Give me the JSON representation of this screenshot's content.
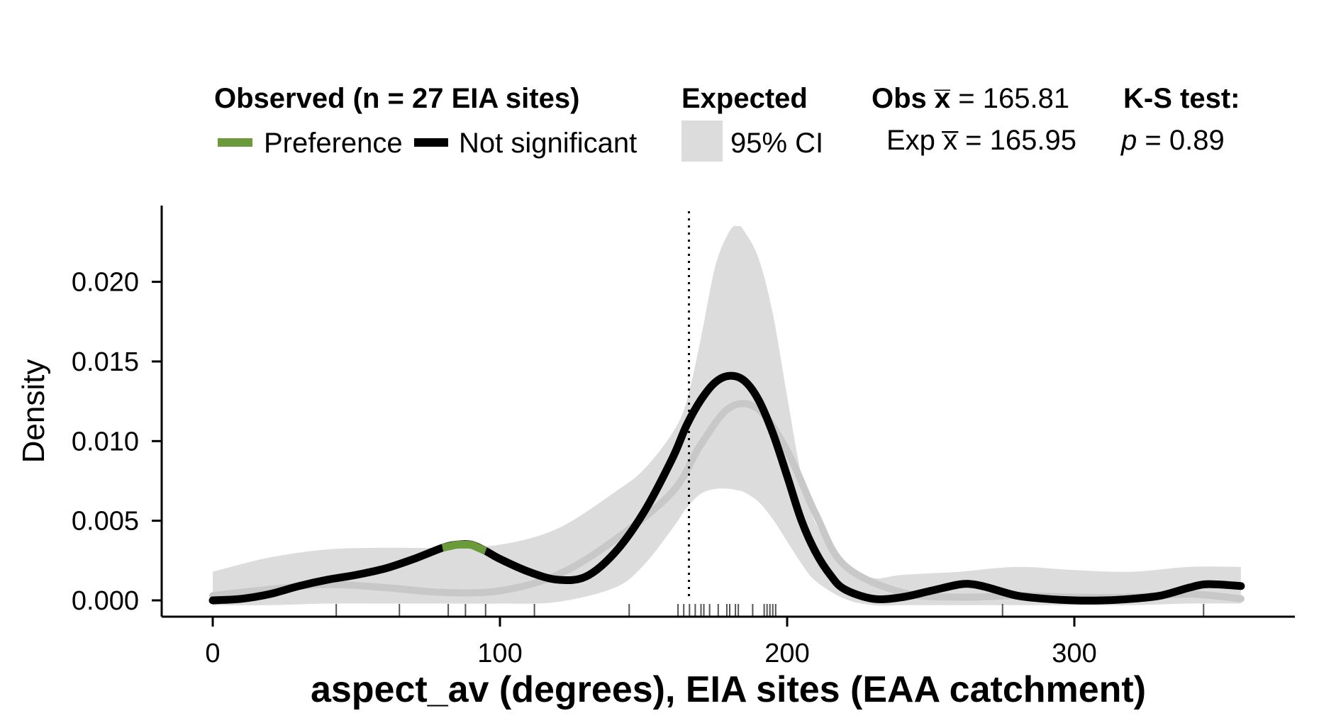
{
  "legend": {
    "observed_title": "Observed (n = 27 EIA sites)",
    "preference_label": "Preference",
    "not_significant_label": "Not significant",
    "expected_title": "Expected",
    "ci_label": "95% CI",
    "obs_mean_prefix": "Obs x̅",
    "obs_mean_value": " = 165.81",
    "exp_mean_prefix": "Exp x̅",
    "exp_mean_value": " = 165.95",
    "ks_title": "K-S test:",
    "ks_p_symbol": "p",
    "ks_p_value": " = 0.89"
  },
  "colors": {
    "preference": "#6a9a3a",
    "not_significant": "#000000",
    "ci_band": "#dcdcdc",
    "expected_line": "#c8c8c8"
  },
  "chart_data": {
    "type": "line",
    "xlabel": "aspect_av (degrees), EIA sites (EAA catchment)",
    "ylabel": "Density",
    "xlim": [
      -18,
      378
    ],
    "ylim": [
      -0.001,
      0.0245
    ],
    "xticks": [
      0,
      100,
      200,
      300
    ],
    "yticks": [
      0.0,
      0.005,
      0.01,
      0.015,
      0.02
    ],
    "ytick_labels": [
      "0.000",
      "0.005",
      "0.010",
      "0.015",
      "0.020"
    ],
    "observed_mean": 165.81,
    "expected_mean": 165.95,
    "observed": {
      "x": [
        0,
        10,
        20,
        30,
        40,
        50,
        60,
        70,
        80,
        85,
        90,
        95,
        100,
        110,
        120,
        130,
        140,
        150,
        160,
        165,
        170,
        175,
        180,
        185,
        190,
        195,
        200,
        205,
        210,
        215,
        220,
        230,
        240,
        250,
        260,
        265,
        270,
        280,
        290,
        300,
        310,
        320,
        330,
        340,
        345,
        350,
        358
      ],
      "y": [
        0.0,
        0.0001,
        0.0004,
        0.0009,
        0.0013,
        0.0016,
        0.002,
        0.0026,
        0.0033,
        0.0035,
        0.0035,
        0.0031,
        0.0026,
        0.0018,
        0.0013,
        0.0015,
        0.003,
        0.0055,
        0.0089,
        0.011,
        0.0126,
        0.0137,
        0.0141,
        0.0138,
        0.0126,
        0.0105,
        0.0078,
        0.005,
        0.003,
        0.0016,
        0.0007,
        0.0001,
        0.0002,
        0.0006,
        0.001,
        0.001,
        0.0008,
        0.0003,
        0.0001,
        0.0,
        0.0,
        0.0001,
        0.0003,
        0.0008,
        0.001,
        0.001,
        0.0009
      ],
      "preference_range": [
        80,
        95
      ]
    },
    "expected": {
      "x": [
        0,
        20,
        40,
        60,
        80,
        100,
        120,
        140,
        160,
        170,
        180,
        190,
        200,
        210,
        220,
        240,
        260,
        280,
        300,
        320,
        340,
        358
      ],
      "y": [
        0.0003,
        0.0007,
        0.001,
        0.0008,
        0.0005,
        0.0006,
        0.0016,
        0.0038,
        0.0068,
        0.0098,
        0.0121,
        0.012,
        0.0094,
        0.0054,
        0.0022,
        0.0005,
        0.0002,
        0.0003,
        0.0002,
        0.0002,
        0.0004,
        0.0001
      ]
    },
    "ci_band": {
      "x": [
        0,
        20,
        40,
        60,
        80,
        100,
        120,
        140,
        150,
        160,
        165,
        170,
        175,
        180,
        183,
        185,
        190,
        195,
        200,
        205,
        210,
        220,
        230,
        240,
        260,
        280,
        300,
        320,
        340,
        358
      ],
      "lower": [
        -0.0003,
        -0.0003,
        -0.0002,
        -0.0002,
        -0.0002,
        -0.0002,
        -0.0001,
        0.0008,
        0.0022,
        0.0045,
        0.0058,
        0.0067,
        0.007,
        0.007,
        0.0069,
        0.0068,
        0.0062,
        0.0051,
        0.0037,
        0.0023,
        0.0012,
        0.0001,
        -0.0003,
        -0.0003,
        -0.0003,
        -0.0003,
        -0.0003,
        -0.0003,
        -0.0002,
        -0.0002
      ],
      "upper": [
        0.0018,
        0.0027,
        0.0032,
        0.0033,
        0.0033,
        0.0035,
        0.0045,
        0.0068,
        0.0082,
        0.0105,
        0.0125,
        0.0165,
        0.021,
        0.0232,
        0.0235,
        0.0232,
        0.0215,
        0.018,
        0.0128,
        0.0078,
        0.0048,
        0.0022,
        0.0014,
        0.0016,
        0.0018,
        0.0021,
        0.0019,
        0.0018,
        0.0021,
        0.0021
      ]
    },
    "rug_x": [
      43,
      65,
      82,
      88,
      95,
      112,
      145,
      162,
      164,
      166,
      168,
      170,
      171,
      173,
      176,
      179,
      180,
      182,
      183,
      188,
      192,
      193,
      194,
      195,
      196,
      275,
      345
    ]
  }
}
